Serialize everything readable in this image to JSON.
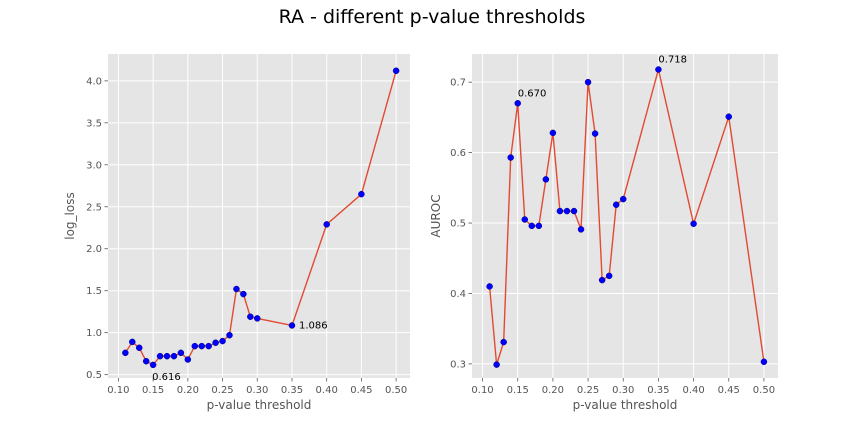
{
  "figure": {
    "title": "RA - different p-value thresholds"
  },
  "style": {
    "panel_bg": "#e5e5e5",
    "grid": "#ffffff",
    "line": "#e24a33",
    "marker": "#0000ff"
  },
  "chart_data": [
    {
      "type": "line",
      "xlabel": "p-value threshold",
      "ylabel": "log_loss",
      "xlim": [
        0.085,
        0.52
      ],
      "ylim": [
        0.46,
        4.32
      ],
      "xticks": [
        0.1,
        0.15,
        0.2,
        0.25,
        0.3,
        0.35,
        0.4,
        0.45,
        0.5
      ],
      "xtick_labels": [
        "0.10",
        "0.15",
        "0.20",
        "0.25",
        "0.30",
        "0.35",
        "0.40",
        "0.45",
        "0.50"
      ],
      "yticks": [
        0.5,
        1.0,
        1.5,
        2.0,
        2.5,
        3.0,
        3.5,
        4.0
      ],
      "ytick_labels": [
        "0.5",
        "1.0",
        "1.5",
        "2.0",
        "2.5",
        "3.0",
        "3.5",
        "4.0"
      ],
      "grid": true,
      "x": [
        0.11,
        0.12,
        0.13,
        0.14,
        0.15,
        0.16,
        0.17,
        0.18,
        0.19,
        0.2,
        0.21,
        0.22,
        0.23,
        0.24,
        0.25,
        0.26,
        0.27,
        0.28,
        0.29,
        0.3,
        0.35,
        0.4,
        0.45,
        0.5
      ],
      "y": [
        0.76,
        0.89,
        0.82,
        0.66,
        0.616,
        0.72,
        0.72,
        0.72,
        0.76,
        0.68,
        0.84,
        0.84,
        0.84,
        0.88,
        0.9,
        0.97,
        1.52,
        1.46,
        1.19,
        1.17,
        1.086,
        2.29,
        2.65,
        4.12
      ],
      "annotations": [
        {
          "text": "0.616",
          "x": 0.15,
          "y": 0.616,
          "pos": "below"
        },
        {
          "text": "1.086",
          "x": 0.35,
          "y": 1.086,
          "pos": "right"
        }
      ]
    },
    {
      "type": "line",
      "xlabel": "p-value threshold",
      "ylabel": "AUROC",
      "xlim": [
        0.085,
        0.52
      ],
      "ylim": [
        0.28,
        0.74
      ],
      "xticks": [
        0.1,
        0.15,
        0.2,
        0.25,
        0.3,
        0.35,
        0.4,
        0.45,
        0.5
      ],
      "xtick_labels": [
        "0.10",
        "0.15",
        "0.20",
        "0.25",
        "0.30",
        "0.35",
        "0.40",
        "0.45",
        "0.50"
      ],
      "yticks": [
        0.3,
        0.4,
        0.5,
        0.6,
        0.7
      ],
      "ytick_labels": [
        "0.3",
        "0.4",
        "0.5",
        "0.6",
        "0.7"
      ],
      "grid": true,
      "x": [
        0.11,
        0.12,
        0.13,
        0.14,
        0.15,
        0.16,
        0.17,
        0.18,
        0.19,
        0.2,
        0.21,
        0.22,
        0.23,
        0.24,
        0.25,
        0.26,
        0.27,
        0.28,
        0.29,
        0.3,
        0.35,
        0.4,
        0.45,
        0.5
      ],
      "y": [
        0.41,
        0.299,
        0.331,
        0.593,
        0.67,
        0.505,
        0.496,
        0.496,
        0.562,
        0.628,
        0.517,
        0.517,
        0.517,
        0.491,
        0.7,
        0.627,
        0.419,
        0.425,
        0.526,
        0.534,
        0.718,
        0.499,
        0.651,
        0.303
      ],
      "annotations": [
        {
          "text": "0.670",
          "x": 0.15,
          "y": 0.67,
          "pos": "above"
        },
        {
          "text": "0.718",
          "x": 0.35,
          "y": 0.718,
          "pos": "above"
        }
      ]
    }
  ]
}
